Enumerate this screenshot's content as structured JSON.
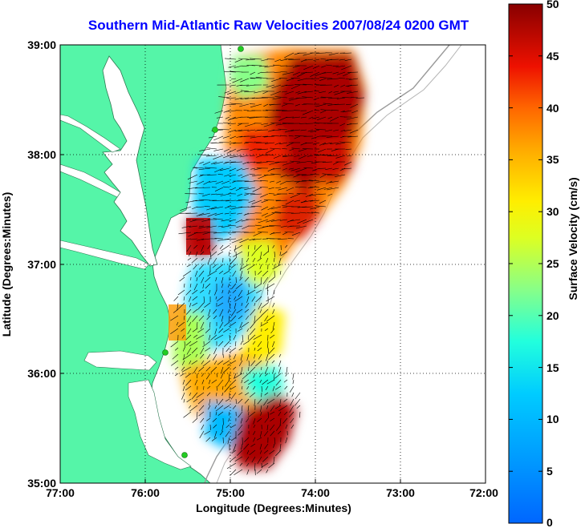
{
  "title": "Southern Mid-Atlantic Raw Velocities 2007/08/24 0200 GMT",
  "axes": {
    "xlabel": "Longitude (Degrees:Minutes)",
    "ylabel": "Latitude (Degrees:Minutes)",
    "x_ticks": [
      "77:00",
      "76:00",
      "75:00",
      "74:00",
      "73:00",
      "72:00"
    ],
    "y_ticks": [
      "39:00",
      "38:00",
      "37:00",
      "36:00",
      "35:00"
    ],
    "x_range_deg_west": [
      77,
      72
    ],
    "y_range_deg_north": [
      35,
      39
    ],
    "grid": "dotted"
  },
  "colorbar": {
    "label": "Surface Velocity (cm/s)",
    "ticks": [
      "50",
      "45",
      "40",
      "35",
      "30",
      "25",
      "20",
      "15",
      "10",
      "5",
      "0"
    ],
    "range": [
      0,
      50
    ],
    "colormap": "jet"
  },
  "colors": {
    "land": "#55f5a8",
    "title": "#0000ff",
    "station": "#22cc22"
  }
}
